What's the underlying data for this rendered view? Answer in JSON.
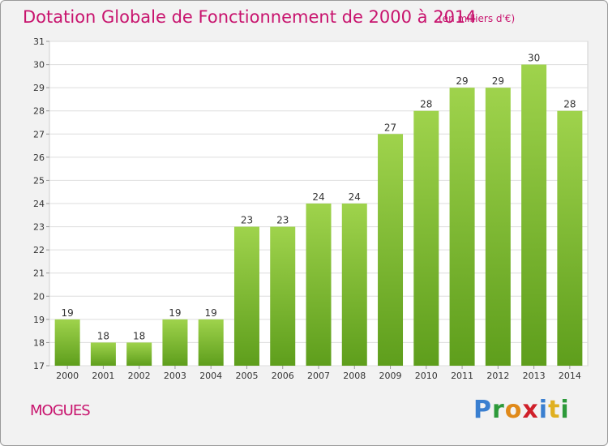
{
  "header": {
    "title": "Dotation Globale de Fonctionnement de 2000 à 2014",
    "unit": "(en milliers d'€)"
  },
  "footer": {
    "place": "MOGUES",
    "logo": "Proxiti"
  },
  "colors": {
    "title": "#c8146e",
    "bar_light": "#9fd34c",
    "bar_dark": "#5e9e1c",
    "background": "#f2f2f2",
    "plot_background": "#ffffff"
  },
  "chart_data": {
    "type": "bar",
    "categories": [
      "2000",
      "2001",
      "2002",
      "2003",
      "2004",
      "2005",
      "2006",
      "2007",
      "2008",
      "2009",
      "2010",
      "2011",
      "2012",
      "2013",
      "2014"
    ],
    "values": [
      19,
      18,
      18,
      19,
      19,
      23,
      23,
      24,
      24,
      27,
      28,
      29,
      29,
      30,
      28
    ],
    "title": "Dotation Globale de Fonctionnement de 2000 à 2014",
    "subtitle": "(en milliers d'€)",
    "xlabel": "",
    "ylabel": "",
    "ylim": [
      17,
      31
    ],
    "yticks": [
      17,
      18,
      19,
      20,
      21,
      22,
      23,
      24,
      25,
      26,
      27,
      28,
      29,
      30,
      31
    ],
    "grid": true,
    "data_labels": true
  }
}
